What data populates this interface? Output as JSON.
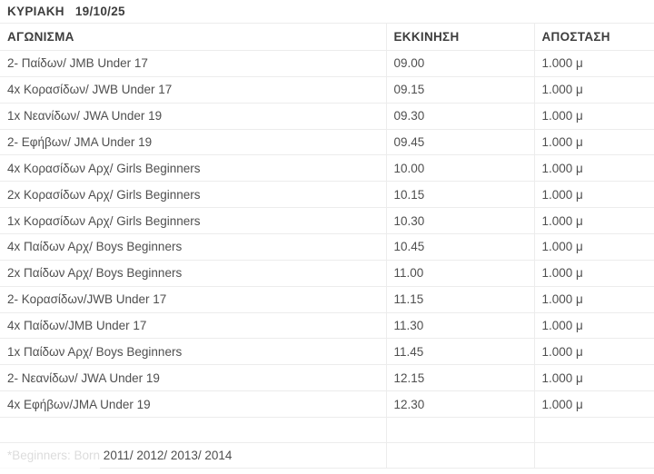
{
  "title": {
    "day": "ΚΥΡΙΑΚΗ",
    "date": "19/10/25"
  },
  "table": {
    "columns": [
      "ΑΓΩΝΙΣΜΑ",
      "ΕΚΚΙΝΗΣΗ",
      "ΑΠΟΣΤΑΣΗ"
    ],
    "rows": [
      {
        "event": "2- Παίδων/ JMB Under 17",
        "start": "09.00",
        "distance": "1.000 μ"
      },
      {
        "event": "4x Κορασίδων/ JWB Under 17",
        "start": "09.15",
        "distance": "1.000 μ"
      },
      {
        "event": "1x Νεανίδων/ JWA Under 19",
        "start": "09.30",
        "distance": "1.000 μ"
      },
      {
        "event": "2- Εφήβων/ JMA Under 19",
        "start": "09.45",
        "distance": "1.000 μ"
      },
      {
        "event": "4x Κορασίδων Αρχ/ Girls Beginners",
        "start": "10.00",
        "distance": "1.000 μ"
      },
      {
        "event": "2x Κορασίδων Αρχ/ Girls Beginners",
        "start": "10.15",
        "distance": "1.000 μ"
      },
      {
        "event": "1x Κορασίδων Αρχ/ Girls Beginners",
        "start": "10.30",
        "distance": "1.000 μ"
      },
      {
        "event": "4x Παίδων Αρχ/ Boys Beginners",
        "start": "10.45",
        "distance": "1.000 μ"
      },
      {
        "event": "2x Παίδων Αρχ/ Boys Beginners",
        "start": "11.00",
        "distance": "1.000 μ"
      },
      {
        "event": "2- Κορασίδων/JWB Under 17",
        "start": "11.15",
        "distance": "1.000 μ"
      },
      {
        "event": "4x Παίδων/JMB Under 17",
        "start": "11.30",
        "distance": "1.000 μ"
      },
      {
        "event": "1x Παίδων Αρχ/ Boys Beginners",
        "start": "11.45",
        "distance": "1.000 μ"
      },
      {
        "event": "2- Νεανίδων/ JWA Under 19",
        "start": "12.15",
        "distance": "1.000 μ"
      },
      {
        "event": "4x Εφήβων/JMA Under 19",
        "start": "12.30",
        "distance": "1.000 μ"
      }
    ]
  },
  "footnote": "*Beginners: Born 2011/ 2012/ 2013/ 2014",
  "colors": {
    "heading_text": "#3d3d3d",
    "body_text": "#4f4f4f",
    "border": "#ececec",
    "background": "#ffffff"
  }
}
